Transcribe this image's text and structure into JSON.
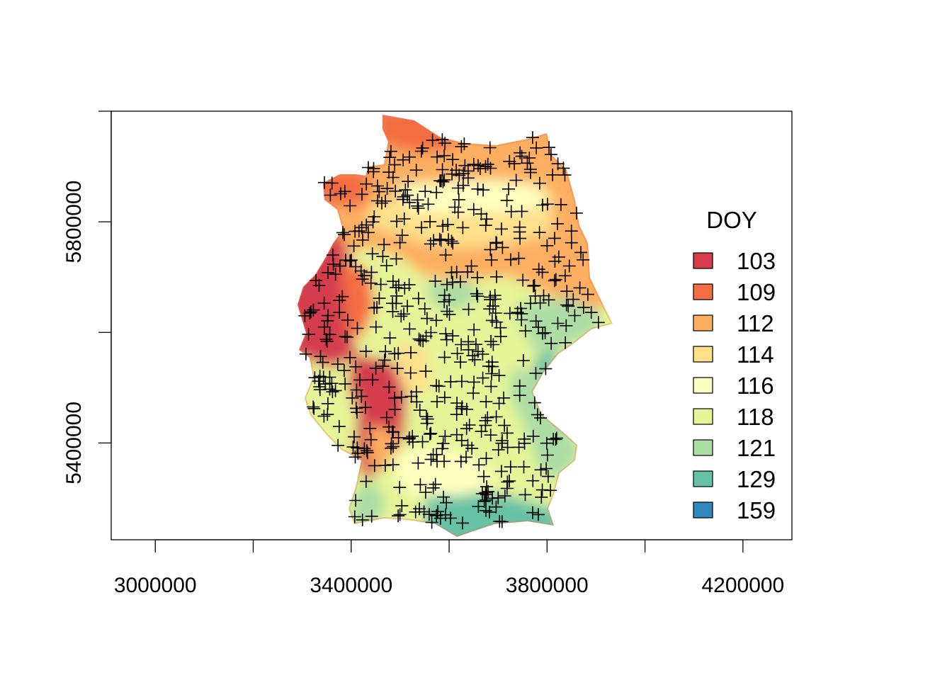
{
  "chart_data": {
    "type": "heatmap",
    "title": "",
    "xlabel": "",
    "ylabel": "",
    "xlim": [
      2910000,
      4300000
    ],
    "ylim": [
      5225000,
      6000000
    ],
    "x_ticks": [
      3000000,
      3200000,
      3400000,
      3600000,
      3800000,
      4000000,
      4200000
    ],
    "x_tick_labels": [
      "3000000",
      "",
      "3400000",
      "",
      "3800000",
      "",
      "4200000"
    ],
    "y_ticks": [
      5400000,
      5600000,
      5800000,
      6000000
    ],
    "y_tick_labels": [
      "5400000",
      "",
      "5800000",
      ""
    ],
    "legend": {
      "title": "DOY",
      "position": "right",
      "entries": [
        {
          "label": "103",
          "color": "#d53e4f"
        },
        {
          "label": "109",
          "color": "#f46d43"
        },
        {
          "label": "112",
          "color": "#fdae61"
        },
        {
          "label": "114",
          "color": "#fee08b"
        },
        {
          "label": "116",
          "color": "#ffffbf"
        },
        {
          "label": "118",
          "color": "#e6f598"
        },
        {
          "label": "121",
          "color": "#abdda4"
        },
        {
          "label": "129",
          "color": "#66c2a5"
        },
        {
          "label": "159",
          "color": "#3288bd"
        }
      ]
    },
    "point_marker": "+",
    "grid": false
  }
}
